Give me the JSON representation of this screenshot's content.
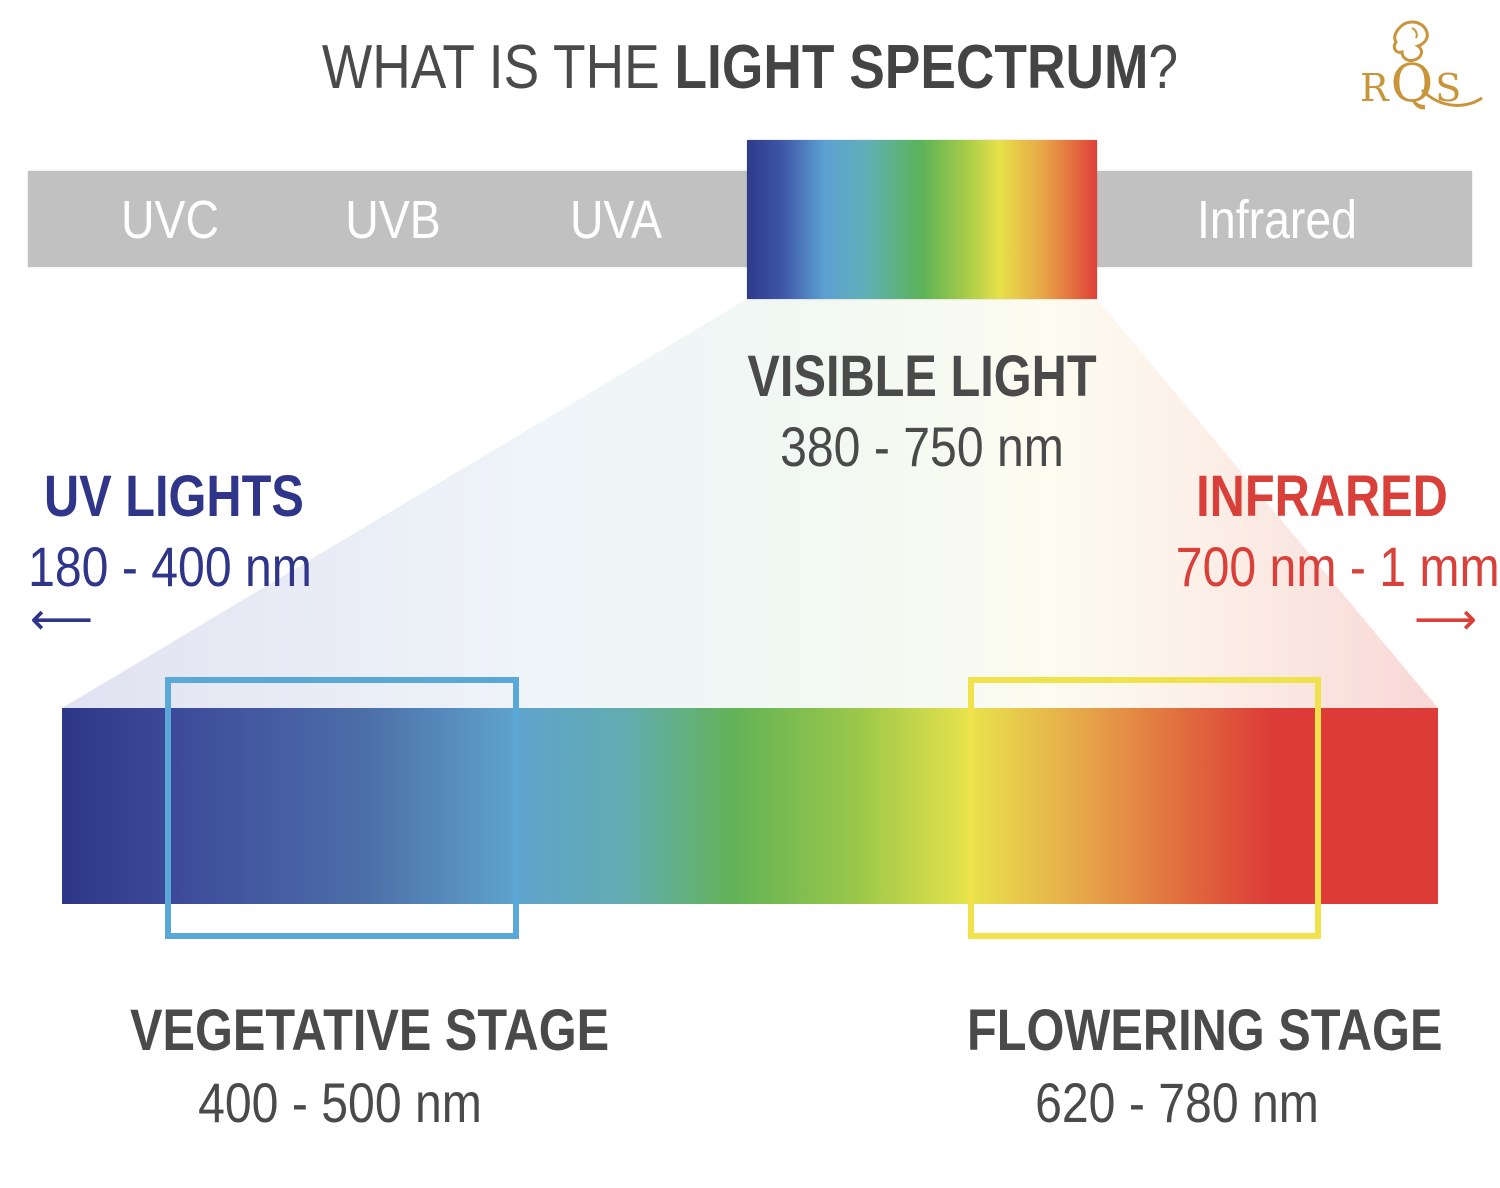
{
  "title": {
    "prefix": "WHAT IS THE ",
    "bold": "LIGHT SPECTRUM",
    "suffix": "?"
  },
  "logo": {
    "text_r": "R",
    "text_q": "Q",
    "text_s": "S"
  },
  "spectrum_bar": {
    "bands": [
      "UVC",
      "UVB",
      "UVA",
      "Infrared"
    ]
  },
  "visible_light": {
    "heading": "VISIBLE LIGHT",
    "range": "380 - 750 nm"
  },
  "uv_lights": {
    "heading": "UV LIGHTS",
    "range": "180 - 400 nm",
    "arrow": "⟵"
  },
  "infrared": {
    "heading": "INFRARED",
    "range": "700 nm - 1 mm",
    "arrow": "⟶"
  },
  "vegetative": {
    "heading": "VEGETATIVE STAGE",
    "range": "400 - 500 nm"
  },
  "flowering": {
    "heading": "FLOWERING STAGE",
    "range": "620 - 780 nm"
  },
  "colors": {
    "uv_text": "#2f3589",
    "infrared_text": "#d9403a",
    "vegetative_box": "#5aa8d8",
    "flowering_box": "#f0e24a",
    "logo_gold": "#c8953a"
  }
}
